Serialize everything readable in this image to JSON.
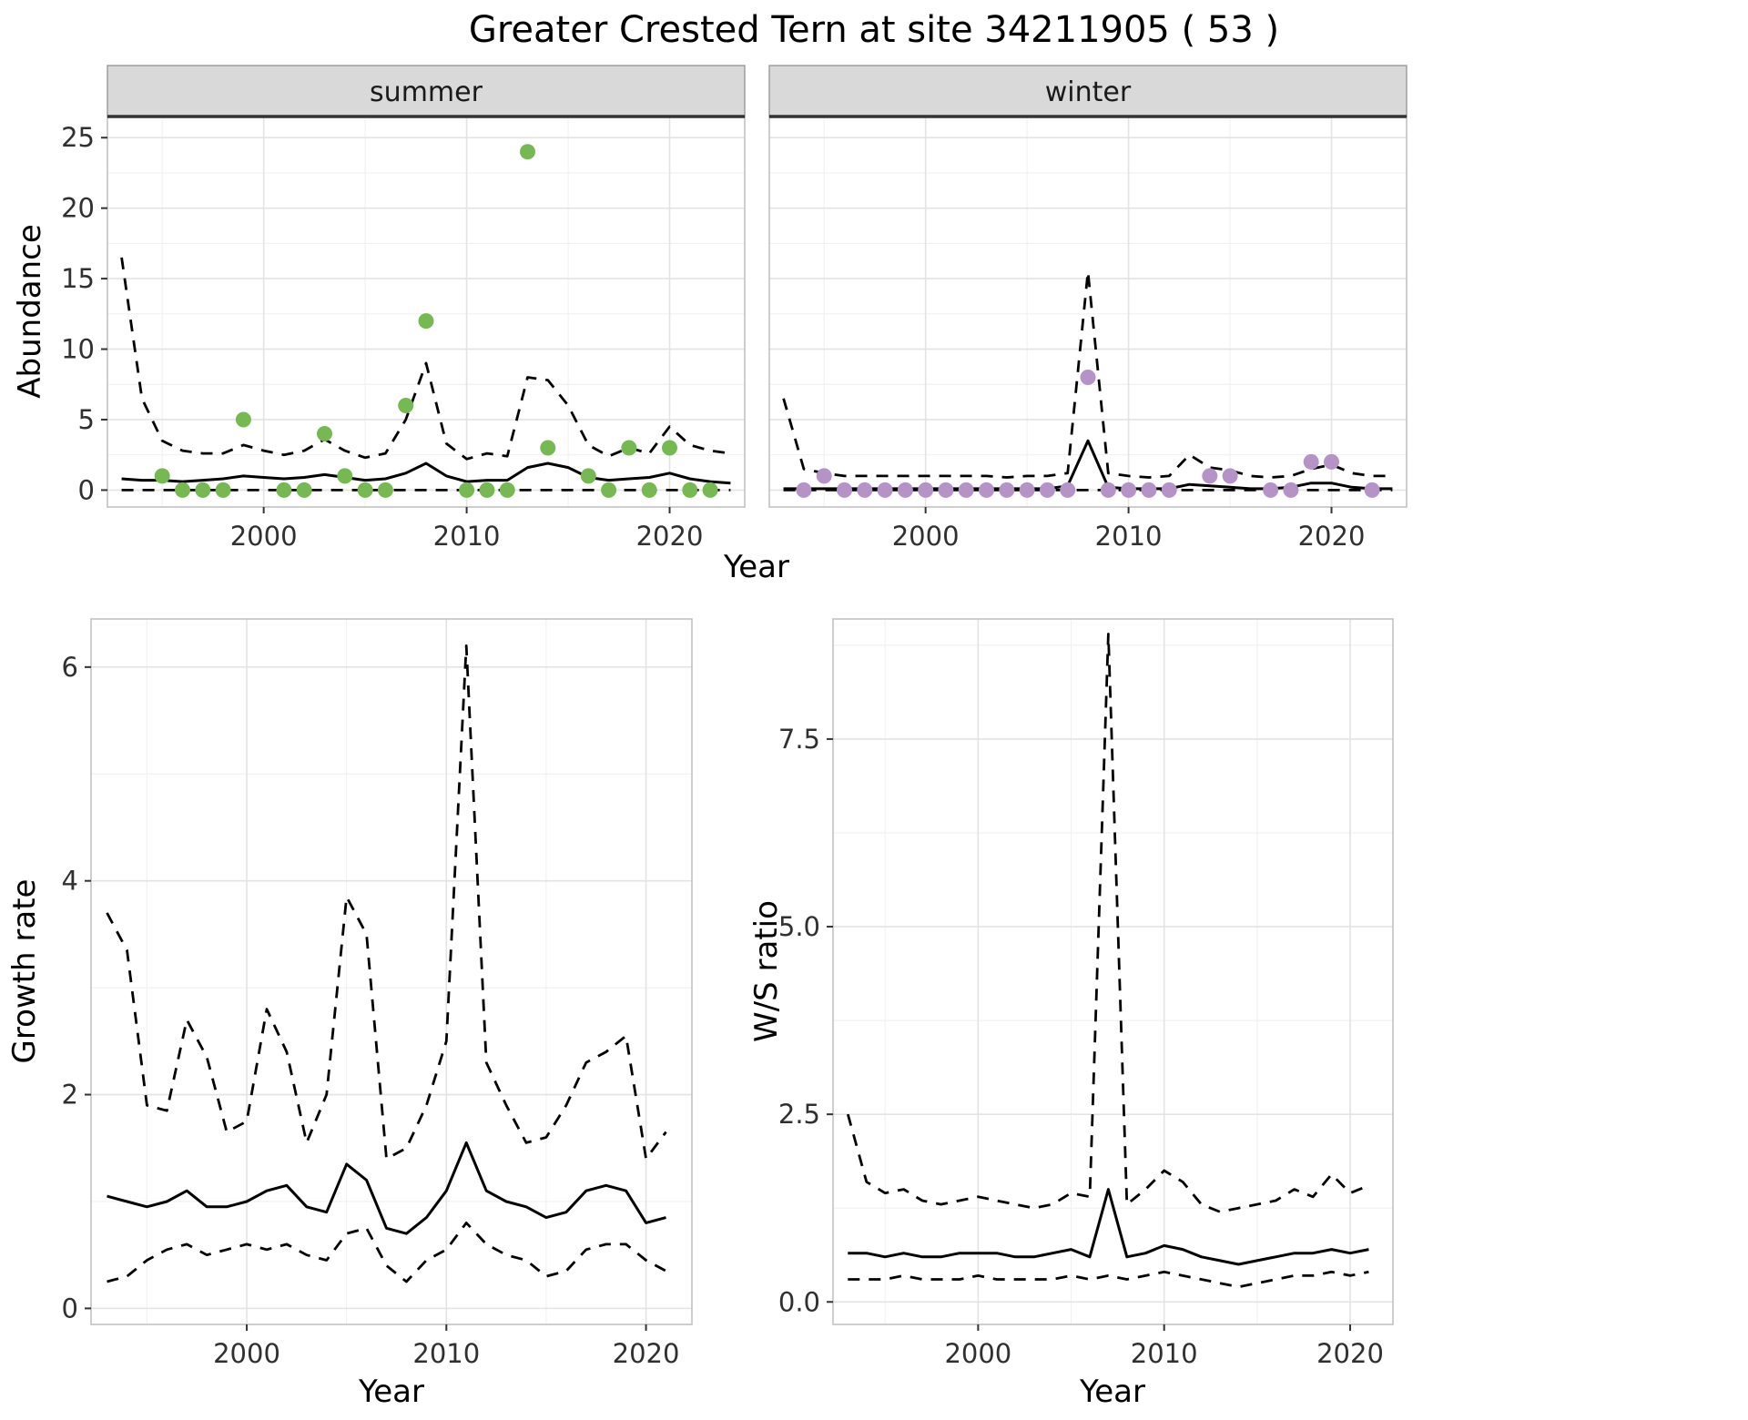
{
  "title": "Greater Crested Tern at site 34211905 ( 53 )",
  "style": {
    "background": "#ffffff",
    "strip_bg": "#d9d9d9",
    "strip_border": "#333333",
    "panel_border": "#c2c2c2",
    "grid_major": "#e3e3e3",
    "grid_minor": "#f1f1f1",
    "line_color": "#000000",
    "tick_color": "#333333",
    "text_color": "#1a1a1a",
    "summer_point_color": "#76b852",
    "winter_point_color": "#b593c7"
  },
  "chart_data": [
    {
      "name": "summer-abundance",
      "type": "line",
      "facet_label": "summer",
      "xlabel": "Year",
      "ylabel": "Abundance",
      "xlim": [
        1992.3,
        2023.7
      ],
      "ylim": [
        -1.2,
        26.5
      ],
      "xticks": [
        2000,
        2010,
        2020
      ],
      "xtick_labels": [
        "2000",
        "2010",
        "2020"
      ],
      "yticks": [
        0,
        5,
        10,
        15,
        20,
        25
      ],
      "ytick_labels": [
        "0",
        "5",
        "10",
        "15",
        "20",
        "25"
      ],
      "series": [
        {
          "name": "upper-ci",
          "style": "dashed",
          "x": [
            1993,
            1994,
            1995,
            1996,
            1997,
            1998,
            1999,
            2000,
            2001,
            2002,
            2003,
            2004,
            2005,
            2006,
            2007,
            2008,
            2009,
            2010,
            2011,
            2012,
            2013,
            2014,
            2015,
            2016,
            2017,
            2018,
            2019,
            2020,
            2021,
            2022,
            2023
          ],
          "values": [
            16.5,
            6.5,
            3.5,
            2.8,
            2.6,
            2.6,
            3.2,
            2.8,
            2.5,
            2.8,
            3.6,
            2.8,
            2.3,
            2.6,
            5.0,
            9.0,
            3.3,
            2.2,
            2.6,
            2.4,
            8.0,
            7.8,
            6.0,
            3.2,
            2.4,
            3.0,
            2.6,
            4.5,
            3.2,
            2.8,
            2.6
          ]
        },
        {
          "name": "median",
          "style": "solid",
          "x": [
            1993,
            1994,
            1995,
            1996,
            1997,
            1998,
            1999,
            2000,
            2001,
            2002,
            2003,
            2004,
            2005,
            2006,
            2007,
            2008,
            2009,
            2010,
            2011,
            2012,
            2013,
            2014,
            2015,
            2016,
            2017,
            2018,
            2019,
            2020,
            2021,
            2022,
            2023
          ],
          "values": [
            0.8,
            0.7,
            0.7,
            0.6,
            0.7,
            0.8,
            1.0,
            0.9,
            0.8,
            0.9,
            1.1,
            0.9,
            0.7,
            0.8,
            1.2,
            1.9,
            1.0,
            0.6,
            0.7,
            0.7,
            1.6,
            1.9,
            1.6,
            0.9,
            0.7,
            0.8,
            0.9,
            1.2,
            0.8,
            0.6,
            0.5
          ]
        },
        {
          "name": "lower-ci",
          "style": "dashed",
          "x": [
            1993,
            2023
          ],
          "values": [
            0,
            0
          ]
        },
        {
          "name": "observed",
          "type": "points",
          "color": "#76b852",
          "x": [
            1995,
            1996,
            1997,
            1998,
            1999,
            2001,
            2002,
            2003,
            2004,
            2005,
            2006,
            2007,
            2008,
            2010,
            2011,
            2012,
            2013,
            2014,
            2016,
            2017,
            2018,
            2019,
            2020,
            2021,
            2022
          ],
          "values": [
            1,
            0,
            0,
            0,
            5,
            0,
            0,
            4,
            1,
            0,
            0,
            6,
            12,
            0,
            0,
            0,
            24,
            3,
            1,
            0,
            3,
            0,
            3,
            0,
            0
          ]
        }
      ]
    },
    {
      "name": "winter-abundance",
      "type": "line",
      "facet_label": "winter",
      "xlabel": "Year",
      "ylabel": "Abundance",
      "xlim": [
        1992.3,
        2023.7
      ],
      "ylim": [
        -1.2,
        26.5
      ],
      "xticks": [
        2000,
        2010,
        2020
      ],
      "xtick_labels": [
        "2000",
        "2010",
        "2020"
      ],
      "yticks": [
        0,
        5,
        10,
        15,
        20,
        25
      ],
      "ytick_labels": [
        "0",
        "5",
        "10",
        "15",
        "20",
        "25"
      ],
      "series": [
        {
          "name": "upper-ci",
          "style": "dashed",
          "x": [
            1993,
            1994,
            1995,
            1996,
            1997,
            1998,
            1999,
            2000,
            2001,
            2002,
            2003,
            2004,
            2005,
            2006,
            2007,
            2008,
            2009,
            2010,
            2011,
            2012,
            2013,
            2014,
            2015,
            2016,
            2017,
            2018,
            2019,
            2020,
            2021,
            2022,
            2023
          ],
          "values": [
            6.5,
            1.5,
            1.2,
            1.0,
            1.0,
            1.0,
            1.0,
            1.0,
            1.0,
            1.0,
            1.0,
            0.9,
            1.0,
            1.0,
            1.2,
            15.5,
            1.2,
            1.0,
            0.9,
            1.0,
            2.5,
            1.6,
            1.4,
            1.0,
            0.9,
            1.0,
            1.5,
            1.8,
            1.2,
            1.0,
            1.0
          ]
        },
        {
          "name": "median",
          "style": "solid",
          "x": [
            1993,
            1994,
            1995,
            1996,
            1997,
            1998,
            1999,
            2000,
            2001,
            2002,
            2003,
            2004,
            2005,
            2006,
            2007,
            2008,
            2009,
            2010,
            2011,
            2012,
            2013,
            2014,
            2015,
            2016,
            2017,
            2018,
            2019,
            2020,
            2021,
            2022,
            2023
          ],
          "values": [
            0.1,
            0.1,
            0.1,
            0.1,
            0.1,
            0.1,
            0.1,
            0.1,
            0.1,
            0.1,
            0.1,
            0.1,
            0.1,
            0.1,
            0.3,
            3.5,
            0.2,
            0.1,
            0.1,
            0.1,
            0.4,
            0.3,
            0.2,
            0.1,
            0.1,
            0.2,
            0.5,
            0.5,
            0.2,
            0.1,
            0.1
          ]
        },
        {
          "name": "lower-ci",
          "style": "dashed",
          "x": [
            1993,
            2023
          ],
          "values": [
            0,
            0
          ]
        },
        {
          "name": "observed",
          "type": "points",
          "color": "#b593c7",
          "x": [
            1994,
            1995,
            1996,
            1997,
            1998,
            1999,
            2000,
            2001,
            2002,
            2003,
            2004,
            2005,
            2006,
            2007,
            2008,
            2009,
            2010,
            2011,
            2012,
            2014,
            2015,
            2017,
            2018,
            2019,
            2020,
            2022
          ],
          "values": [
            0,
            1,
            0,
            0,
            0,
            0,
            0,
            0,
            0,
            0,
            0,
            0,
            0,
            0,
            8,
            0,
            0,
            0,
            0,
            1,
            1,
            0,
            0,
            2,
            2,
            0
          ]
        }
      ]
    },
    {
      "name": "growth-rate",
      "type": "line",
      "facet_label": null,
      "xlabel": "Year",
      "ylabel": "Growth rate",
      "xlim": [
        1992.2,
        2022.3
      ],
      "ylim": [
        -0.15,
        6.45
      ],
      "xticks": [
        2000,
        2010,
        2020
      ],
      "xtick_labels": [
        "2000",
        "2010",
        "2020"
      ],
      "yticks": [
        0,
        2,
        4,
        6
      ],
      "ytick_labels": [
        "0",
        "2",
        "4",
        "6"
      ],
      "series": [
        {
          "name": "upper-ci",
          "style": "dashed",
          "x": [
            1993,
            1994,
            1995,
            1996,
            1997,
            1998,
            1999,
            2000,
            2001,
            2002,
            2003,
            2004,
            2005,
            2006,
            2007,
            2008,
            2009,
            2010,
            2011,
            2012,
            2013,
            2014,
            2015,
            2016,
            2017,
            2018,
            2019,
            2020,
            2021
          ],
          "values": [
            3.7,
            3.35,
            1.9,
            1.85,
            2.7,
            2.35,
            1.65,
            1.75,
            2.8,
            2.4,
            1.55,
            2.0,
            3.85,
            3.5,
            1.4,
            1.5,
            1.9,
            2.5,
            6.2,
            2.3,
            1.9,
            1.55,
            1.6,
            1.9,
            2.3,
            2.4,
            2.55,
            1.4,
            1.65
          ]
        },
        {
          "name": "median",
          "style": "solid",
          "x": [
            1993,
            1994,
            1995,
            1996,
            1997,
            1998,
            1999,
            2000,
            2001,
            2002,
            2003,
            2004,
            2005,
            2006,
            2007,
            2008,
            2009,
            2010,
            2011,
            2012,
            2013,
            2014,
            2015,
            2016,
            2017,
            2018,
            2019,
            2020,
            2021
          ],
          "values": [
            1.05,
            1.0,
            0.95,
            1.0,
            1.1,
            0.95,
            0.95,
            1.0,
            1.1,
            1.15,
            0.95,
            0.9,
            1.35,
            1.2,
            0.75,
            0.7,
            0.85,
            1.1,
            1.55,
            1.1,
            1.0,
            0.95,
            0.85,
            0.9,
            1.1,
            1.15,
            1.1,
            0.8,
            0.85
          ]
        },
        {
          "name": "lower-ci",
          "style": "dashed",
          "x": [
            1993,
            1994,
            1995,
            1996,
            1997,
            1998,
            1999,
            2000,
            2001,
            2002,
            2003,
            2004,
            2005,
            2006,
            2007,
            2008,
            2009,
            2010,
            2011,
            2012,
            2013,
            2014,
            2015,
            2016,
            2017,
            2018,
            2019,
            2020,
            2021
          ],
          "values": [
            0.25,
            0.3,
            0.45,
            0.55,
            0.6,
            0.5,
            0.55,
            0.6,
            0.55,
            0.6,
            0.5,
            0.45,
            0.7,
            0.75,
            0.4,
            0.25,
            0.45,
            0.55,
            0.8,
            0.6,
            0.5,
            0.45,
            0.3,
            0.35,
            0.55,
            0.6,
            0.6,
            0.45,
            0.35
          ]
        }
      ]
    },
    {
      "name": "ws-ratio",
      "type": "line",
      "facet_label": null,
      "xlabel": "Year",
      "ylabel": "W/S ratio",
      "xlim": [
        1992.2,
        2022.3
      ],
      "ylim": [
        -0.3,
        9.1
      ],
      "xticks": [
        2000,
        2010,
        2020
      ],
      "xtick_labels": [
        "2000",
        "2010",
        "2020"
      ],
      "yticks": [
        0,
        2.5,
        5,
        7.5
      ],
      "ytick_labels": [
        "0.0",
        "2.5",
        "5.0",
        "7.5"
      ],
      "series": [
        {
          "name": "upper-ci",
          "style": "dashed",
          "x": [
            1993,
            1994,
            1995,
            1996,
            1997,
            1998,
            1999,
            2000,
            2001,
            2002,
            2003,
            2004,
            2005,
            2006,
            2007,
            2008,
            2009,
            2010,
            2011,
            2012,
            2013,
            2014,
            2015,
            2016,
            2017,
            2018,
            2019,
            2020,
            2021
          ],
          "values": [
            2.5,
            1.6,
            1.45,
            1.5,
            1.35,
            1.3,
            1.35,
            1.4,
            1.35,
            1.3,
            1.25,
            1.3,
            1.45,
            1.4,
            8.9,
            1.3,
            1.5,
            1.75,
            1.6,
            1.3,
            1.2,
            1.25,
            1.3,
            1.35,
            1.5,
            1.4,
            1.7,
            1.45,
            1.55
          ]
        },
        {
          "name": "median",
          "style": "solid",
          "x": [
            1993,
            1994,
            1995,
            1996,
            1997,
            1998,
            1999,
            2000,
            2001,
            2002,
            2003,
            2004,
            2005,
            2006,
            2007,
            2008,
            2009,
            2010,
            2011,
            2012,
            2013,
            2014,
            2015,
            2016,
            2017,
            2018,
            2019,
            2020,
            2021
          ],
          "values": [
            0.65,
            0.65,
            0.6,
            0.65,
            0.6,
            0.6,
            0.65,
            0.65,
            0.65,
            0.6,
            0.6,
            0.65,
            0.7,
            0.6,
            1.5,
            0.6,
            0.65,
            0.75,
            0.7,
            0.6,
            0.55,
            0.5,
            0.55,
            0.6,
            0.65,
            0.65,
            0.7,
            0.65,
            0.7
          ]
        },
        {
          "name": "lower-ci",
          "style": "dashed",
          "x": [
            1993,
            1994,
            1995,
            1996,
            1997,
            1998,
            1999,
            2000,
            2001,
            2002,
            2003,
            2004,
            2005,
            2006,
            2007,
            2008,
            2009,
            2010,
            2011,
            2012,
            2013,
            2014,
            2015,
            2016,
            2017,
            2018,
            2019,
            2020,
            2021
          ],
          "values": [
            0.3,
            0.3,
            0.3,
            0.35,
            0.3,
            0.3,
            0.3,
            0.35,
            0.3,
            0.3,
            0.3,
            0.3,
            0.35,
            0.3,
            0.35,
            0.3,
            0.35,
            0.4,
            0.35,
            0.3,
            0.25,
            0.2,
            0.25,
            0.3,
            0.35,
            0.35,
            0.4,
            0.35,
            0.4
          ]
        }
      ]
    }
  ]
}
